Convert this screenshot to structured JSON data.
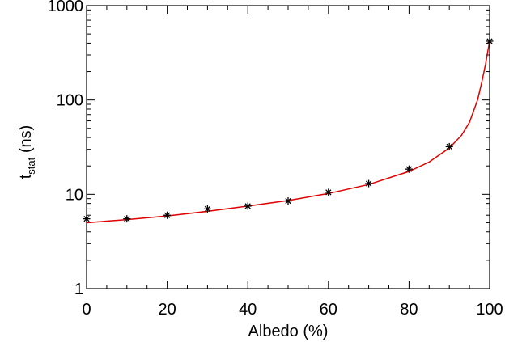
{
  "chart_data": {
    "type": "scatter",
    "xlabel": "Albedo (%)",
    "ylabel": {
      "main": "t",
      "sub": "stat",
      "unit": " (ns)"
    },
    "xlim": [
      0,
      100
    ],
    "ylim": [
      1,
      1000
    ],
    "yscale": "log",
    "grid": false,
    "x_ticks": [
      0,
      20,
      40,
      60,
      80,
      100
    ],
    "x_tick_labels": [
      "0",
      "20",
      "40",
      "60",
      "80",
      "100"
    ],
    "y_ticks": [
      1,
      10,
      100,
      1000
    ],
    "y_tick_labels": [
      "1",
      "10",
      "100",
      "1000"
    ],
    "series": [
      {
        "kind": "scatter",
        "marker": "asterisk",
        "color": "#000000",
        "x": [
          0,
          10,
          20,
          30,
          40,
          50,
          60,
          70,
          80,
          90,
          100
        ],
        "y": [
          5.5,
          5.5,
          6.0,
          7.0,
          7.5,
          8.5,
          10.5,
          13.0,
          18.5,
          32.0,
          420.0
        ]
      },
      {
        "kind": "line",
        "color": "#e00000",
        "x": [
          0,
          10,
          20,
          30,
          40,
          50,
          60,
          70,
          80,
          85,
          90,
          93,
          95,
          97,
          98,
          99,
          99.5,
          100
        ],
        "y": [
          5.0,
          5.4,
          5.9,
          6.6,
          7.5,
          8.6,
          10.2,
          12.7,
          17.5,
          22.0,
          31.0,
          42.0,
          58.0,
          100.0,
          150.0,
          240.0,
          320.0,
          420.0
        ]
      }
    ]
  }
}
